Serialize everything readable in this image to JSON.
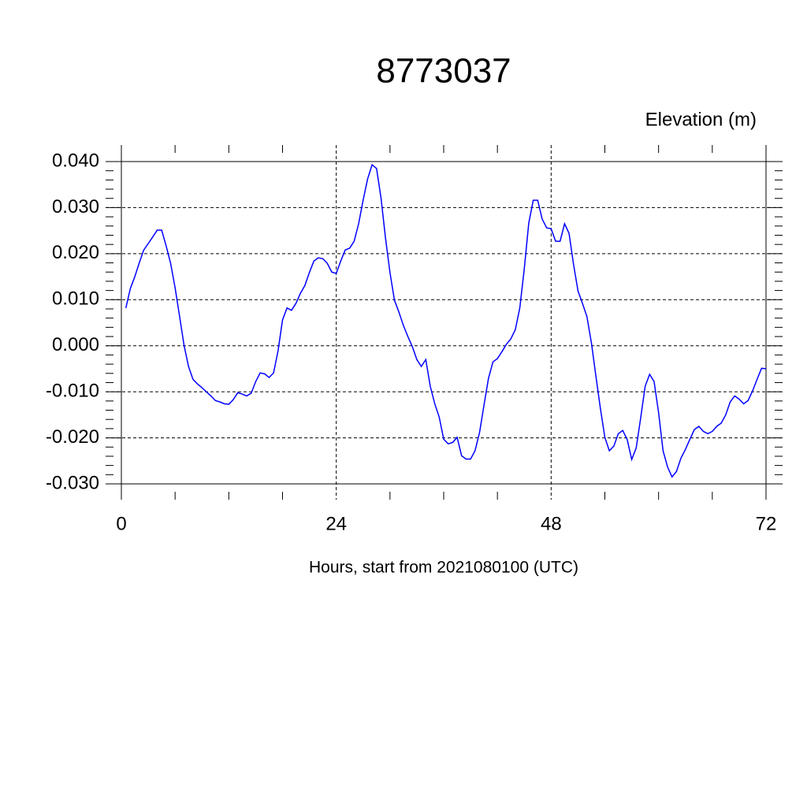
{
  "chart_data": {
    "type": "line",
    "title": "8773037",
    "y_label": "Elevation (m)",
    "x_label": "Hours, start from 2021080100 (UTC)",
    "x": [
      0.5,
      1,
      1.5,
      2,
      2.5,
      3,
      3.5,
      4,
      4.5,
      5,
      5.5,
      6,
      6.5,
      7,
      7.5,
      8,
      8.5,
      9,
      9.5,
      10,
      10.5,
      11,
      11.5,
      12,
      12.5,
      13,
      13.5,
      14,
      14.5,
      15,
      15.5,
      16,
      16.5,
      17,
      17.5,
      18,
      18.5,
      19,
      19.5,
      20,
      20.5,
      21,
      21.5,
      22,
      22.5,
      23,
      23.5,
      24,
      24.5,
      25,
      25.5,
      26,
      26.5,
      27,
      27.5,
      28,
      28.5,
      29,
      29.5,
      30,
      30.5,
      31,
      31.5,
      32,
      32.5,
      33,
      33.5,
      34,
      34.5,
      35,
      35.5,
      36,
      36.5,
      37,
      37.5,
      38,
      38.5,
      39,
      39.5,
      40,
      40.5,
      41,
      41.5,
      42,
      42.5,
      43,
      43.5,
      44,
      44.5,
      45,
      45.5,
      46,
      46.5,
      47,
      47.5,
      48,
      48.5,
      49,
      49.5,
      50,
      50.5,
      51,
      51.5,
      52,
      52.5,
      53,
      53.5,
      54,
      54.5,
      55,
      55.5,
      56,
      56.5,
      57,
      57.5,
      58,
      58.5,
      59,
      59.5,
      60,
      60.5,
      61,
      61.5,
      62,
      62.5,
      63,
      63.5,
      64,
      64.5,
      65,
      65.5,
      66,
      66.5,
      67,
      67.5,
      68,
      68.5,
      69,
      69.5,
      70,
      70.5,
      71,
      71.5,
      72
    ],
    "series": [
      {
        "color": "#0000ff",
        "values": [
          0.0082,
          0.0124,
          0.015,
          0.018,
          0.0208,
          0.0222,
          0.0236,
          0.0251,
          0.0251,
          0.0217,
          0.0179,
          0.0126,
          0.0064,
          0.0001,
          -0.0045,
          -0.0073,
          -0.0083,
          -0.0091,
          -0.01,
          -0.0109,
          -0.0119,
          -0.0122,
          -0.0126,
          -0.0127,
          -0.0117,
          -0.0102,
          -0.0105,
          -0.0109,
          -0.0103,
          -0.0078,
          -0.0059,
          -0.0061,
          -0.0069,
          -0.0059,
          -0.0011,
          0.0056,
          0.0082,
          0.0077,
          0.0092,
          0.0114,
          0.0131,
          0.0159,
          0.0184,
          0.0191,
          0.0189,
          0.0179,
          0.016,
          0.0157,
          0.0184,
          0.0208,
          0.0212,
          0.0227,
          0.0265,
          0.0316,
          0.0362,
          0.0393,
          0.0385,
          0.0321,
          0.0234,
          0.0159,
          0.0099,
          0.0073,
          0.0044,
          0.002,
          -0.0002,
          -0.003,
          -0.0045,
          -0.003,
          -0.0088,
          -0.0126,
          -0.0155,
          -0.0203,
          -0.0213,
          -0.021,
          -0.0199,
          -0.0239,
          -0.0246,
          -0.0246,
          -0.0228,
          -0.0189,
          -0.0129,
          -0.0071,
          -0.0035,
          -0.0028,
          -0.0013,
          0.0003,
          0.0015,
          0.0035,
          0.0082,
          0.0167,
          0.0266,
          0.0316,
          0.0316,
          0.0275,
          0.0256,
          0.0254,
          0.0227,
          0.0227,
          0.0265,
          0.0244,
          0.0177,
          0.0119,
          0.0092,
          0.0063,
          0.0006,
          -0.0066,
          -0.0136,
          -0.0199,
          -0.0228,
          -0.0218,
          -0.0191,
          -0.0184,
          -0.0204,
          -0.0247,
          -0.0222,
          -0.0157,
          -0.0088,
          -0.0062,
          -0.0078,
          -0.0145,
          -0.0228,
          -0.0263,
          -0.0285,
          -0.0273,
          -0.0244,
          -0.0225,
          -0.0203,
          -0.0182,
          -0.0175,
          -0.0186,
          -0.0191,
          -0.0186,
          -0.0175,
          -0.0168,
          -0.015,
          -0.0122,
          -0.0109,
          -0.0116,
          -0.0126,
          -0.0119,
          -0.0098,
          -0.0073,
          -0.0049,
          -0.005
        ]
      }
    ],
    "xlim": [
      0,
      72
    ],
    "xticks": [
      0,
      24,
      48,
      72
    ],
    "ylim": [
      -0.03,
      0.04
    ],
    "yticks": [
      {
        "value": -0.03,
        "label": "-0.030"
      },
      {
        "value": -0.02,
        "label": "-0.020"
      },
      {
        "value": -0.01,
        "label": "-0.010"
      },
      {
        "value": 0,
        "label": "0.000"
      },
      {
        "value": 0.01,
        "label": "0.010"
      },
      {
        "value": 0.02,
        "label": "0.020"
      },
      {
        "value": 0.03,
        "label": "0.030"
      },
      {
        "value": 0.04,
        "label": "0.040"
      }
    ],
    "grid": true
  }
}
